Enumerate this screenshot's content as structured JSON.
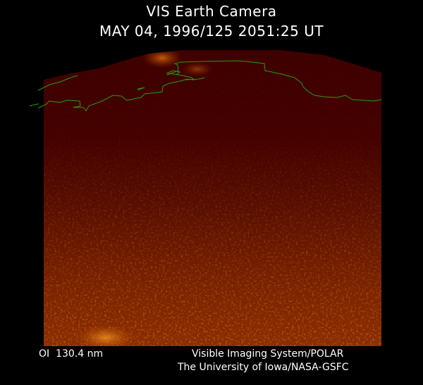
{
  "header": {
    "title": "VIS Earth Camera",
    "timestamp": "MAY 04, 1996/125 2051:25 UT"
  },
  "footer": {
    "filter": "OI  130.4 nm",
    "instrument": "Visible Imaging System/POLAR",
    "credit": "The University of Iowa/NASA-GSFC"
  },
  "colors": {
    "background": "#000000",
    "earth_dark": "#400000",
    "aurora_glow": "#c8600a",
    "coastline": "#2a9a10",
    "text": "#ffffff"
  }
}
